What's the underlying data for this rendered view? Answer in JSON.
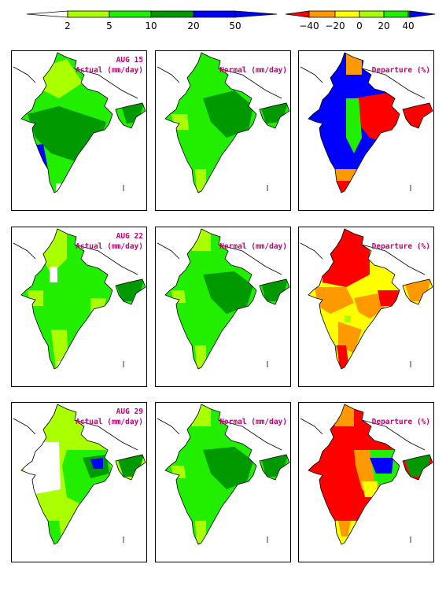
{
  "colors": {
    "white": "#ffffff",
    "yellowgreen": "#aaff00",
    "green": "#22ee00",
    "darkgreen": "#009900",
    "blue": "#0000ff",
    "red": "#ff0000",
    "orange": "#ff9900",
    "yellow": "#ffff00",
    "title": "#c8006e"
  },
  "legend_rain": {
    "ticks": [
      "2",
      "5",
      "10",
      "20",
      "50"
    ],
    "colors": [
      "#ffffff",
      "#aaff00",
      "#22ee00",
      "#009900",
      "#0000ff",
      "#0000ff"
    ]
  },
  "legend_dep": {
    "ticks": [
      "−40",
      "−20",
      "0",
      "20",
      "40"
    ],
    "colors": [
      "#ff0000",
      "#ff9900",
      "#ffff00",
      "#aaff00",
      "#22ee00",
      "#009900",
      "#0000ff"
    ]
  },
  "rows": [
    {
      "date": "AUG 15",
      "actual_label": "Actual (mm/day)",
      "normal_label": "Normal (mm/day)",
      "departure_label": "Departure (%)"
    },
    {
      "date": "AUG 22",
      "actual_label": "Actual (mm/day)",
      "normal_label": "Normal (mm/day)",
      "departure_label": "Departure (%)"
    },
    {
      "date": "AUG 29",
      "actual_label": "Actual (mm/day)",
      "normal_label": "Normal (mm/day)",
      "departure_label": "Departure (%)"
    }
  ]
}
